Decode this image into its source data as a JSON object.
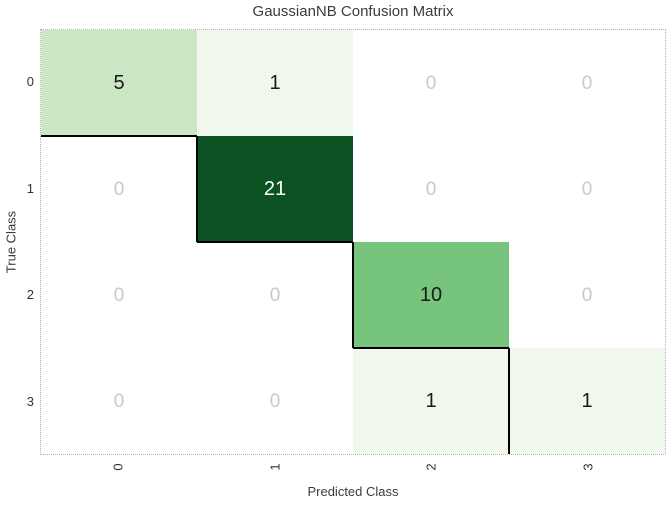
{
  "chart_data": {
    "type": "heatmap",
    "title": "GaussianNB Confusion Matrix",
    "xlabel": "Predicted Class",
    "ylabel": "True Class",
    "x_tick_labels": [
      "0",
      "1",
      "2",
      "3"
    ],
    "y_tick_labels": [
      "0",
      "1",
      "2",
      "3"
    ],
    "x_tick_rotation_deg": -90,
    "matrix": [
      [
        5,
        1,
        0,
        0
      ],
      [
        0,
        21,
        0,
        0
      ],
      [
        0,
        0,
        10,
        0
      ],
      [
        0,
        0,
        1,
        1
      ]
    ],
    "cell_colors": [
      [
        "#cbe7c4",
        "#f0f8ee",
        "#ffffff",
        "#ffffff"
      ],
      [
        "#ffffff",
        "#0d5222",
        "#ffffff",
        "#ffffff"
      ],
      [
        "#ffffff",
        "#ffffff",
        "#77c47d",
        "#ffffff"
      ],
      [
        "#ffffff",
        "#ffffff",
        "#f0f8ee",
        "#f0f8ee"
      ]
    ],
    "value_text_colors": [
      [
        "#1a1a1a",
        "#1a1a1a",
        "#c9c9c9",
        "#c9c9c9"
      ],
      [
        "#c9c9c9",
        "#ffffff",
        "#c9c9c9",
        "#c9c9c9"
      ],
      [
        "#c9c9c9",
        "#c9c9c9",
        "#1a1a1a",
        "#c9c9c9"
      ],
      [
        "#c9c9c9",
        "#c9c9c9",
        "#1a1a1a",
        "#1a1a1a"
      ]
    ],
    "zero_text_color": "#c9c9c9",
    "diagonal_staircase_line_color": "#000000",
    "axis_frame_color": "#a9b5a9",
    "grid": false,
    "legend": false
  }
}
